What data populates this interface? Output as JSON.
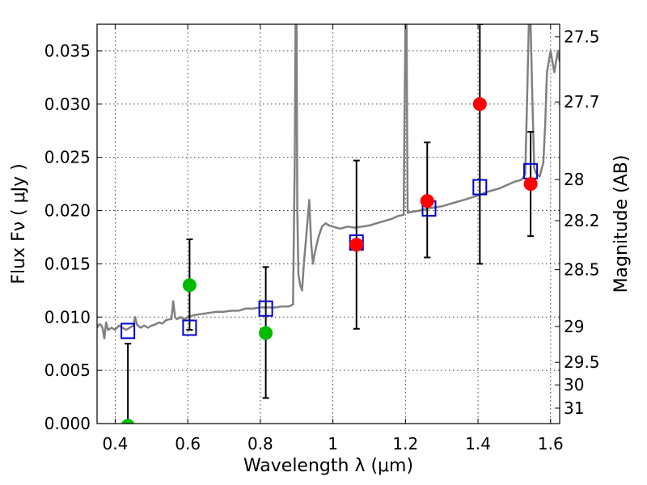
{
  "chart_data": {
    "type": "scatter",
    "title": "",
    "xlabel": "Wavelength  λ (μm)",
    "ylabel": "Flux  Fν  ( μJy )",
    "y2label": "Magnitude (AB)",
    "xlim": [
      0.35,
      1.625
    ],
    "ylim": [
      0.0,
      0.0375
    ],
    "grid": true,
    "legend": "none",
    "x_ticks": [
      {
        "value": 0.4,
        "label": "0.4"
      },
      {
        "value": 0.6,
        "label": "0.6"
      },
      {
        "value": 0.8,
        "label": "0.8"
      },
      {
        "value": 1.0,
        "label": "1"
      },
      {
        "value": 1.2,
        "label": "1.2"
      },
      {
        "value": 1.4,
        "label": "1.4"
      },
      {
        "value": 1.6,
        "label": "1.6"
      }
    ],
    "y_ticks": [
      {
        "value": 0.0,
        "label": "0.000"
      },
      {
        "value": 0.005,
        "label": "0.005"
      },
      {
        "value": 0.01,
        "label": "0.010"
      },
      {
        "value": 0.015,
        "label": "0.015"
      },
      {
        "value": 0.02,
        "label": "0.020"
      },
      {
        "value": 0.025,
        "label": "0.025"
      },
      {
        "value": 0.03,
        "label": "0.030"
      },
      {
        "value": 0.035,
        "label": "0.035"
      }
    ],
    "mag_ticks": [
      {
        "mag": 27.5,
        "label": "27.5"
      },
      {
        "mag": 27.7,
        "label": "27.7"
      },
      {
        "mag": 28.0,
        "label": "28"
      },
      {
        "mag": 28.2,
        "label": "28.2"
      },
      {
        "mag": 28.5,
        "label": "28.5"
      },
      {
        "mag": 29.0,
        "label": "29"
      },
      {
        "mag": 29.5,
        "label": "29.5"
      },
      {
        "mag": 30.0,
        "label": "30"
      },
      {
        "mag": 31.0,
        "label": "31"
      }
    ],
    "series": [
      {
        "kind": "line",
        "color": "#808080",
        "points": [
          [
            0.35,
            0.009
          ],
          [
            0.355,
            0.0093
          ],
          [
            0.36,
            0.0093
          ],
          [
            0.365,
            0.009
          ],
          [
            0.37,
            0.008
          ],
          [
            0.375,
            0.0095
          ],
          [
            0.38,
            0.0088
          ],
          [
            0.39,
            0.009
          ],
          [
            0.4,
            0.0088
          ],
          [
            0.41,
            0.0092
          ],
          [
            0.42,
            0.009
          ],
          [
            0.43,
            0.0088
          ],
          [
            0.44,
            0.009
          ],
          [
            0.45,
            0.0092
          ],
          [
            0.455,
            0.01
          ],
          [
            0.46,
            0.0093
          ],
          [
            0.47,
            0.009
          ],
          [
            0.48,
            0.0092
          ],
          [
            0.49,
            0.009
          ],
          [
            0.5,
            0.0092
          ],
          [
            0.51,
            0.0093
          ],
          [
            0.52,
            0.0095
          ],
          [
            0.53,
            0.0094
          ],
          [
            0.54,
            0.0097
          ],
          [
            0.55,
            0.0098
          ],
          [
            0.555,
            0.0098
          ],
          [
            0.56,
            0.0115
          ],
          [
            0.565,
            0.01
          ],
          [
            0.57,
            0.0098
          ],
          [
            0.58,
            0.01
          ],
          [
            0.59,
            0.0098
          ],
          [
            0.6,
            0.01
          ],
          [
            0.62,
            0.0102
          ],
          [
            0.64,
            0.0103
          ],
          [
            0.66,
            0.0104
          ],
          [
            0.68,
            0.0105
          ],
          [
            0.7,
            0.0105
          ],
          [
            0.72,
            0.0106
          ],
          [
            0.74,
            0.0106
          ],
          [
            0.76,
            0.0108
          ],
          [
            0.78,
            0.0108
          ],
          [
            0.8,
            0.0109
          ],
          [
            0.82,
            0.0109
          ],
          [
            0.84,
            0.0109
          ],
          [
            0.86,
            0.011
          ],
          [
            0.88,
            0.011
          ],
          [
            0.89,
            0.0112
          ],
          [
            0.895,
            0.025
          ],
          [
            0.897,
            0.0375
          ],
          [
            0.9,
            0.0375
          ],
          [
            0.902,
            0.02
          ],
          [
            0.905,
            0.014
          ],
          [
            0.91,
            0.013
          ],
          [
            0.915,
            0.0125
          ],
          [
            0.92,
            0.015
          ],
          [
            0.925,
            0.017
          ],
          [
            0.93,
            0.019
          ],
          [
            0.935,
            0.021
          ],
          [
            0.94,
            0.017
          ],
          [
            0.945,
            0.015
          ],
          [
            0.95,
            0.016
          ],
          [
            0.96,
            0.0175
          ],
          [
            0.97,
            0.0185
          ],
          [
            0.98,
            0.0188
          ],
          [
            0.99,
            0.0186
          ],
          [
            1.0,
            0.0185
          ],
          [
            1.02,
            0.0183
          ],
          [
            1.04,
            0.0185
          ],
          [
            1.06,
            0.0184
          ],
          [
            1.08,
            0.0185
          ],
          [
            1.1,
            0.0186
          ],
          [
            1.12,
            0.0188
          ],
          [
            1.14,
            0.019
          ],
          [
            1.16,
            0.0192
          ],
          [
            1.18,
            0.0195
          ],
          [
            1.195,
            0.0196
          ],
          [
            1.2,
            0.0375
          ],
          [
            1.203,
            0.0375
          ],
          [
            1.206,
            0.0198
          ],
          [
            1.22,
            0.0199
          ],
          [
            1.24,
            0.02
          ],
          [
            1.26,
            0.0202
          ],
          [
            1.28,
            0.0203
          ],
          [
            1.3,
            0.0204
          ],
          [
            1.32,
            0.0206
          ],
          [
            1.34,
            0.0208
          ],
          [
            1.36,
            0.021
          ],
          [
            1.38,
            0.0212
          ],
          [
            1.4,
            0.0214
          ],
          [
            1.42,
            0.0217
          ],
          [
            1.44,
            0.0219
          ],
          [
            1.46,
            0.0221
          ],
          [
            1.48,
            0.0224
          ],
          [
            1.5,
            0.0227
          ],
          [
            1.52,
            0.0229
          ],
          [
            1.53,
            0.0234
          ],
          [
            1.535,
            0.03
          ],
          [
            1.54,
            0.0375
          ],
          [
            1.545,
            0.0375
          ],
          [
            1.55,
            0.03
          ],
          [
            1.555,
            0.024
          ],
          [
            1.56,
            0.0235
          ],
          [
            1.57,
            0.0232
          ],
          [
            1.58,
            0.0245
          ],
          [
            1.585,
            0.028
          ],
          [
            1.59,
            0.033
          ],
          [
            1.6,
            0.035
          ],
          [
            1.61,
            0.033
          ],
          [
            1.62,
            0.035
          ],
          [
            1.625,
            0.034
          ]
        ]
      },
      {
        "kind": "square-markers",
        "color": "#0000cc",
        "points": [
          [
            0.435,
            0.0087
          ],
          [
            0.605,
            0.009
          ],
          [
            0.815,
            0.0108
          ],
          [
            1.065,
            0.017
          ],
          [
            1.265,
            0.0202
          ],
          [
            1.405,
            0.0222
          ],
          [
            1.545,
            0.0237
          ]
        ]
      },
      {
        "kind": "circle-markers",
        "color": "#00bb00",
        "points": [
          [
            0.435,
            -0.0002
          ],
          [
            0.605,
            0.013
          ],
          [
            0.815,
            0.0085
          ]
        ]
      },
      {
        "kind": "circle-markers",
        "color": "#ff0000",
        "points": [
          [
            1.065,
            0.0168
          ],
          [
            1.26,
            0.0209
          ],
          [
            1.405,
            0.03
          ],
          [
            1.545,
            0.0225
          ]
        ]
      }
    ],
    "error_bars": [
      {
        "x": 0.435,
        "low": 0.0,
        "high": 0.0075
      },
      {
        "x": 0.605,
        "low": 0.0088,
        "high": 0.0173
      },
      {
        "x": 0.815,
        "low": 0.0024,
        "high": 0.0147
      },
      {
        "x": 1.065,
        "low": 0.0089,
        "high": 0.0247
      },
      {
        "x": 1.26,
        "low": 0.0156,
        "high": 0.0264
      },
      {
        "x": 1.405,
        "low": 0.015,
        "high": 0.0375
      },
      {
        "x": 1.545,
        "low": 0.0176,
        "high": 0.0274
      }
    ]
  }
}
